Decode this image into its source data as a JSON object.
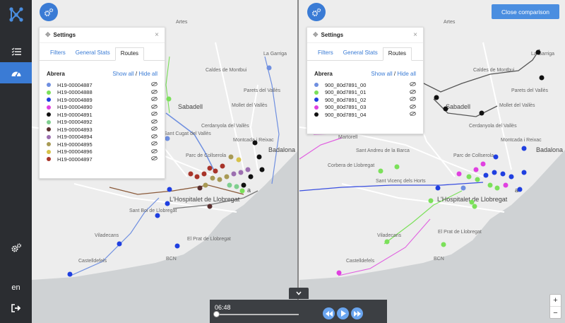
{
  "sidebar": {
    "logo": "network-logo-icon",
    "items": [
      {
        "name": "list-icon",
        "active": false
      },
      {
        "name": "dashboard-icon",
        "active": true
      }
    ],
    "settings_icon": "gears-icon",
    "language": "en",
    "logout_icon": "logout-icon"
  },
  "colors": {
    "accent": "#3a7bd5",
    "sidebar_bg": "#2b2d31",
    "player_bg": "#3c3f43"
  },
  "close_comparison_label": "Close comparison",
  "left_panel": {
    "title": "Settings",
    "tabs": [
      {
        "label": "Filters",
        "active": false
      },
      {
        "label": "General Stats",
        "active": false
      },
      {
        "label": "Routes",
        "active": true
      }
    ],
    "group": "Abrera",
    "show_all": "Show all",
    "separator": "/",
    "hide_all": "Hide all",
    "routes": [
      {
        "label": "H19-00004887",
        "color": "#6f8fe0"
      },
      {
        "label": "H19-00004888",
        "color": "#7be05a"
      },
      {
        "label": "H19-00004889",
        "color": "#1f3fe0"
      },
      {
        "label": "H19-00004890",
        "color": "#e040e0"
      },
      {
        "label": "H19-00004891",
        "color": "#111111"
      },
      {
        "label": "H19-00004892",
        "color": "#7fcf8f"
      },
      {
        "label": "H19-00004893",
        "color": "#5a2e2e"
      },
      {
        "label": "H19-00004894",
        "color": "#9c6fb0"
      },
      {
        "label": "H19-00004895",
        "color": "#a89a55"
      },
      {
        "label": "H19-00004896",
        "color": "#d6c24a"
      },
      {
        "label": "H19-00004897",
        "color": "#a8342a"
      }
    ]
  },
  "right_panel": {
    "title": "Settings",
    "tabs": [
      {
        "label": "Filters",
        "active": false
      },
      {
        "label": "General Stats",
        "active": false
      },
      {
        "label": "Routes",
        "active": true
      }
    ],
    "group": "Abrera",
    "show_all": "Show all",
    "separator": "/",
    "hide_all": "Hide all",
    "routes": [
      {
        "label": "900_80d7891_00",
        "color": "#6f8fe0"
      },
      {
        "label": "900_80d7891_01",
        "color": "#7be05a"
      },
      {
        "label": "900_80d7891_02",
        "color": "#1f3fe0"
      },
      {
        "label": "900_80d7891_03",
        "color": "#e040e0"
      },
      {
        "label": "900_80d7891_04",
        "color": "#111111"
      }
    ]
  },
  "map_labels_left": {
    "sabadell": "Sabadell",
    "caldes": "Caldes de Montbui",
    "la_garriga": "La Garriga",
    "parets": "Parets del Vallès",
    "mollet": "Mollet del Vallès",
    "cerdanyola": "Cerdanyola del Vallès",
    "montcada": "Montcada i Reixac",
    "badalona": "Badalona",
    "sant_cugat": "Sant Cugat del Vallès",
    "parc": "Parc de Collserola",
    "hospitalet": "L'Hospitalet de Llobregat",
    "sant_boi": "Sant Boi de Llobregat",
    "el_prat": "El Prat de Llobregat",
    "viladecans": "Viladecans",
    "castelldefels": "Castelldefels",
    "bcn": "BCN",
    "artes": "Artes",
    "barcelona_tail": "a"
  },
  "map_labels_right": {
    "la_garriga": "La Garriga",
    "caldes": "Caldes de Montbui",
    "sabadell": "Sabadell",
    "parets": "Parets del Vallès",
    "mollet": "Mollet del Vallès",
    "cerdanyola": "Cerdanyola del Vallès",
    "montcada": "Montcada i Reixac",
    "badalona": "Badalona",
    "martorell": "Martorell",
    "sant_andreu": "Sant Andreu de la Barca",
    "corbera": "Corbera de Llobregat",
    "sant_vicenc": "Sant Vicenç dels Horts",
    "parc": "Parc de Collserola",
    "hospitalet": "L'Hospitalet de Llobregat",
    "el_prat": "El Prat de Llobregat",
    "viladecans": "Viladecans",
    "castelldefels": "Castelldefels",
    "bcn": "BCN",
    "artes": "Artes",
    "barcelona_tail": "a"
  },
  "player": {
    "time": "06:48",
    "progress": 0.0,
    "buttons": [
      "rewind-icon",
      "play-icon",
      "fast-forward-icon"
    ],
    "toggle_icon": "chevron-down-icon"
  },
  "zoom": {
    "in": "+",
    "out": "−"
  }
}
